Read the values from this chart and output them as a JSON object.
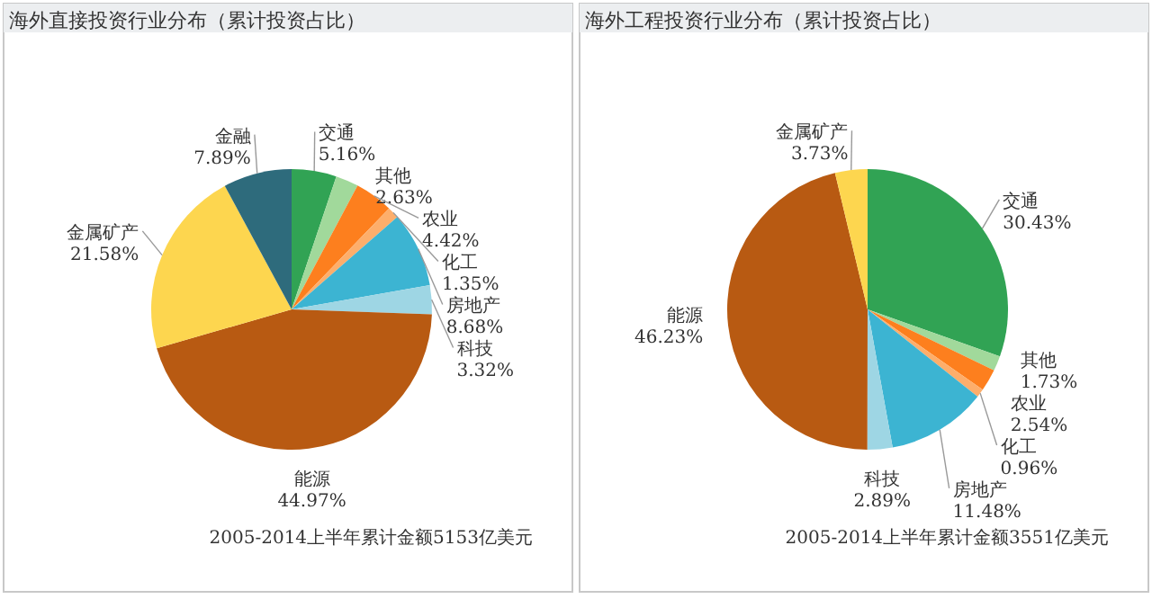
{
  "chart_data": [
    {
      "type": "pie",
      "title": "海外直接投资行业分布（累计投资占比）",
      "categories": [
        "交通",
        "其他",
        "农业",
        "化工",
        "房地产",
        "科技",
        "能源",
        "金属矿产",
        "金融"
      ],
      "values": [
        5.16,
        2.63,
        4.42,
        1.35,
        8.68,
        3.32,
        44.97,
        21.58,
        7.89
      ],
      "value_labels": [
        "5.16%",
        "2.63%",
        "4.42%",
        "1.35%",
        "8.68%",
        "3.32%",
        "44.97%",
        "21.58%",
        "7.89%"
      ],
      "colors": [
        "#31a354",
        "#a1d99b",
        "#fd7f1e",
        "#fdae6b",
        "#3cb4d2",
        "#9ed6e4",
        "#b85a12",
        "#fdd64f",
        "#2e6b7c"
      ],
      "annotations": [
        "2005-2014上半年累计金额5153亿美元"
      ]
    },
    {
      "type": "pie",
      "title": "海外工程投资行业分布（累计投资占比）",
      "categories": [
        "交通",
        "其他",
        "农业",
        "化工",
        "房地产",
        "科技",
        "能源",
        "金属矿产"
      ],
      "values": [
        30.43,
        1.73,
        2.54,
        0.96,
        11.48,
        2.89,
        46.23,
        3.73
      ],
      "value_labels": [
        "30.43%",
        "1.73%",
        "2.54%",
        "0.96%",
        "11.48%",
        "2.89%",
        "46.23%",
        "3.73%"
      ],
      "colors": [
        "#31a354",
        "#a1d99b",
        "#fd7f1e",
        "#fdae6b",
        "#3cb4d2",
        "#9ed6e4",
        "#b85a12",
        "#fdd64f"
      ],
      "annotations": [
        "2005-2014上半年累计金额3551亿美元"
      ]
    }
  ]
}
